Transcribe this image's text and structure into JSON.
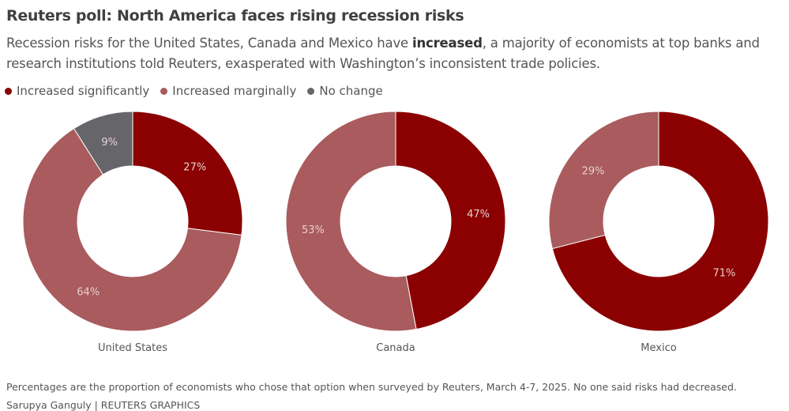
{
  "title": "Reuters poll: North America faces rising recession risks",
  "subtitle_pre": "Recession risks for the United States, Canada and Mexico have ",
  "subtitle_bold": "increased",
  "subtitle_post": ", a majority of economists at top banks and research institutions told Reuters, exasperated with Washington’s inconsistent trade policies.",
  "legend": [
    {
      "label": "Increased significantly",
      "color": "#8b0000"
    },
    {
      "label": "Increased marginally",
      "color": "#a95b5d"
    },
    {
      "label": "No change",
      "color": "#666569"
    }
  ],
  "chart_data": [
    {
      "type": "pie",
      "donut": true,
      "label": "United States",
      "series": [
        "Increased significantly",
        "Increased marginally",
        "No change"
      ],
      "values": [
        27,
        64,
        9
      ],
      "data_labels": [
        "27%",
        "64%",
        "9%"
      ]
    },
    {
      "type": "pie",
      "donut": true,
      "label": "Canada",
      "series": [
        "Increased significantly",
        "Increased marginally"
      ],
      "values": [
        47,
        53
      ],
      "data_labels": [
        "47%",
        "53%"
      ]
    },
    {
      "type": "pie",
      "donut": true,
      "label": "Mexico",
      "series": [
        "Increased significantly",
        "Increased marginally"
      ],
      "values": [
        71,
        29
      ],
      "data_labels": [
        "71%",
        "29%"
      ]
    }
  ],
  "footnote": "Percentages are the proportion of economists who chose that option when surveyed by Reuters, March 4-7, 2025. No one said risks had decreased.",
  "credit": "Sarupya Ganguly | REUTERS GRAPHICS"
}
